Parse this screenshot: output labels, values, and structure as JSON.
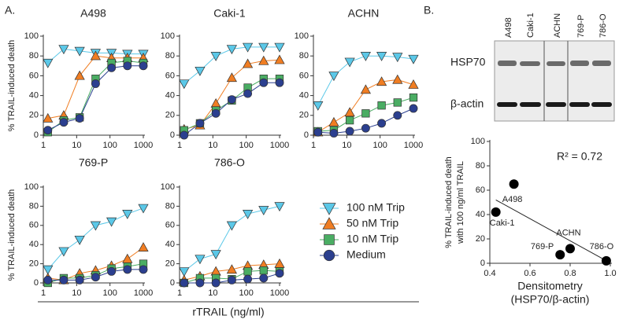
{
  "panel_labels": [
    "A.",
    "B."
  ],
  "shared_x_label": "rTRAIL (ng/ml)",
  "legend": [
    {
      "name": "100 nM Trip",
      "color": "#5bc8e8",
      "marker": "triangle-down"
    },
    {
      "name": "50 nM Trip",
      "color": "#f07d22",
      "marker": "triangle-up"
    },
    {
      "name": "10 nM Trip",
      "color": "#4aad63",
      "marker": "square"
    },
    {
      "name": "Medium",
      "color": "#2b3f8f",
      "marker": "circle"
    }
  ],
  "blot": {
    "lanes": [
      "A498",
      "Caki-1",
      "ACHN",
      "769-P",
      "786-O"
    ],
    "rows": [
      "HSP70",
      "β-actin"
    ]
  },
  "chart_data": [
    {
      "type": "line",
      "title": "A498",
      "ylabel": "% TRAIL-induced death",
      "xscale": "log",
      "x": [
        1.37,
        4.1,
        12.3,
        37,
        111,
        333,
        1000
      ],
      "xlim": [
        1,
        1000
      ],
      "xticks": [
        1,
        10,
        100,
        1000
      ],
      "ylim": [
        0,
        100
      ],
      "yticks": [
        0,
        20,
        40,
        60,
        80,
        100
      ],
      "series": [
        {
          "values": [
            73,
            87,
            85,
            83,
            83,
            82,
            82
          ]
        },
        {
          "values": [
            17,
            20,
            60,
            80,
            78,
            78,
            78
          ]
        },
        {
          "values": [
            3,
            15,
            18,
            57,
            73,
            75,
            73
          ]
        },
        {
          "values": [
            5,
            13,
            17,
            52,
            68,
            70,
            70
          ]
        }
      ]
    },
    {
      "type": "line",
      "title": "Caki-1",
      "xscale": "log",
      "x": [
        1.37,
        4.1,
        12.3,
        37,
        111,
        333,
        1000
      ],
      "xlim": [
        1,
        1000
      ],
      "xticks": [
        1,
        10,
        100,
        1000
      ],
      "ylim": [
        0,
        100
      ],
      "yticks": [
        0,
        20,
        40,
        60,
        80,
        100
      ],
      "series": [
        {
          "values": [
            52,
            65,
            80,
            87,
            89,
            89,
            89
          ]
        },
        {
          "values": [
            6,
            10,
            32,
            58,
            72,
            75,
            76
          ]
        },
        {
          "values": [
            5,
            12,
            25,
            35,
            48,
            57,
            57
          ]
        },
        {
          "values": [
            0,
            12,
            22,
            36,
            42,
            53,
            53
          ]
        }
      ]
    },
    {
      "type": "line",
      "title": "ACHN",
      "xscale": "log",
      "x": [
        1.37,
        4.1,
        12.3,
        37,
        111,
        333,
        1000
      ],
      "xlim": [
        1,
        1000
      ],
      "xticks": [
        1,
        10,
        100,
        1000
      ],
      "ylim": [
        0,
        100
      ],
      "yticks": [
        0,
        20,
        40,
        60,
        80,
        100
      ],
      "series": [
        {
          "values": [
            30,
            60,
            74,
            80,
            80,
            79,
            77
          ]
        },
        {
          "values": [
            3,
            13,
            23,
            46,
            54,
            56,
            51
          ]
        },
        {
          "values": [
            4,
            5,
            15,
            22,
            30,
            33,
            38
          ]
        },
        {
          "values": [
            3,
            2,
            4,
            7,
            12,
            20,
            27
          ]
        }
      ]
    },
    {
      "type": "line",
      "title": "769-P",
      "ylabel": "% TRAIL-induced death",
      "xscale": "log",
      "x": [
        1.37,
        4.1,
        12.3,
        37,
        111,
        333,
        1000
      ],
      "xlim": [
        1,
        1000
      ],
      "xticks": [
        1,
        10,
        100,
        1000
      ],
      "ylim": [
        0,
        100
      ],
      "yticks": [
        0,
        20,
        40,
        60,
        80,
        100
      ],
      "series": [
        {
          "values": [
            14,
            33,
            45,
            60,
            64,
            72,
            78
          ]
        },
        {
          "values": [
            5,
            3,
            10,
            13,
            18,
            25,
            37
          ]
        },
        {
          "values": [
            0,
            5,
            5,
            8,
            15,
            17,
            20
          ]
        },
        {
          "values": [
            3,
            3,
            3,
            6,
            12,
            14,
            14
          ]
        }
      ]
    },
    {
      "type": "line",
      "title": "786-O",
      "xscale": "log",
      "x": [
        1.37,
        4.1,
        12.3,
        37,
        111,
        333,
        1000
      ],
      "xlim": [
        1,
        1000
      ],
      "xticks": [
        1,
        10,
        100,
        1000
      ],
      "ylim": [
        0,
        100
      ],
      "yticks": [
        0,
        20,
        40,
        60,
        80,
        100
      ],
      "series": [
        {
          "values": [
            12,
            25,
            30,
            60,
            72,
            76,
            80
          ]
        },
        {
          "values": [
            3,
            7,
            12,
            14,
            18,
            19,
            20
          ]
        },
        {
          "values": [
            0,
            5,
            5,
            4,
            12,
            13,
            12
          ]
        },
        {
          "values": [
            0,
            0,
            0,
            3,
            4,
            5,
            10
          ]
        }
      ]
    },
    {
      "type": "scatter",
      "xlabel": [
        "Densitometry",
        "(HSP70/β-actin)"
      ],
      "ylabel": [
        "% TRAIL-induced death",
        "with 100 ng/ml TRAIL"
      ],
      "annotation": "R² = 0.72",
      "categories": [
        "Caki-1",
        "A498",
        "769-P",
        "ACHN",
        "786-O"
      ],
      "x": [
        0.43,
        0.52,
        0.75,
        0.8,
        0.98
      ],
      "values": [
        42,
        65,
        7,
        12,
        2
      ],
      "color": "#000000",
      "trendline": {
        "x": [
          0.43,
          0.97
        ],
        "values": [
          52,
          3
        ]
      },
      "xlim": [
        0.4,
        1.0
      ],
      "xticks": [
        0.4,
        0.6,
        0.8,
        {
          "value": 1.0,
          "label": "1.0"
        }
      ],
      "ylim": [
        0,
        100
      ],
      "yticks": [
        0,
        20,
        40,
        60,
        80,
        100
      ]
    }
  ]
}
